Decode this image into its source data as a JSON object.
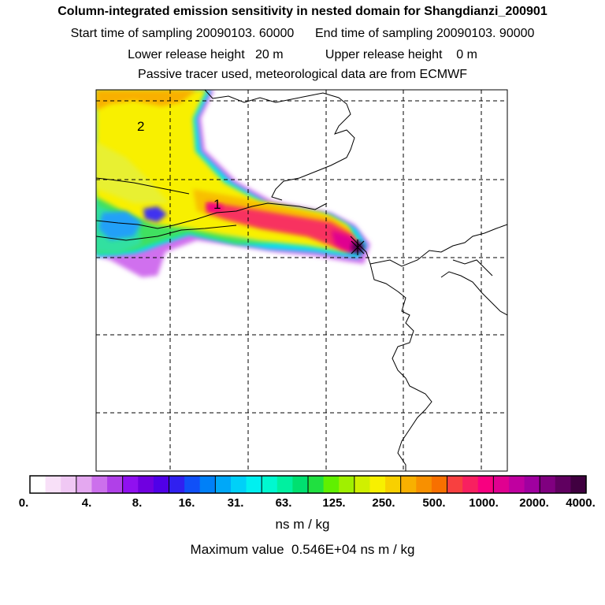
{
  "header": {
    "title": "Column-integrated emission sensitivity in nested domain for Shangdianzi_200901",
    "line1": "Start time of sampling 20090103. 60000      End time of sampling 20090103. 90000",
    "line2": "Lower release height   20 m            Upper release height    0 m",
    "line3": "Passive tracer used, meteorological data are from ECMWF"
  },
  "map": {
    "labels": [
      "2",
      "1"
    ],
    "colorbar": {
      "ticks": [
        "0.",
        "4.",
        "8.",
        "16.",
        "31.",
        "63.",
        "125.",
        "250.",
        "500.",
        "1000.",
        "2000.",
        "4000."
      ],
      "colors": [
        "#ffffff",
        "#f8e0f8",
        "#f0c8f4",
        "#e4a8f0",
        "#cc70ec",
        "#b040e8",
        "#9010f0",
        "#7000e0",
        "#5000e8",
        "#3020f0",
        "#1050f8",
        "#0080f8",
        "#00a8f8",
        "#00d0f8",
        "#00f0f0",
        "#00f8d0",
        "#00f0a0",
        "#00e070",
        "#20e040",
        "#60f000",
        "#a0f000",
        "#d0f000",
        "#f8f000",
        "#f8d000",
        "#f8b000",
        "#f89000",
        "#f87000",
        "#f84040",
        "#f82060",
        "#f80080",
        "#e00090",
        "#c000a0",
        "#a000a0",
        "#800080",
        "#600060",
        "#400040"
      ],
      "unit": "ns m / kg"
    },
    "max_value_text": "Maximum value  0.546E+04 ns m / kg"
  }
}
